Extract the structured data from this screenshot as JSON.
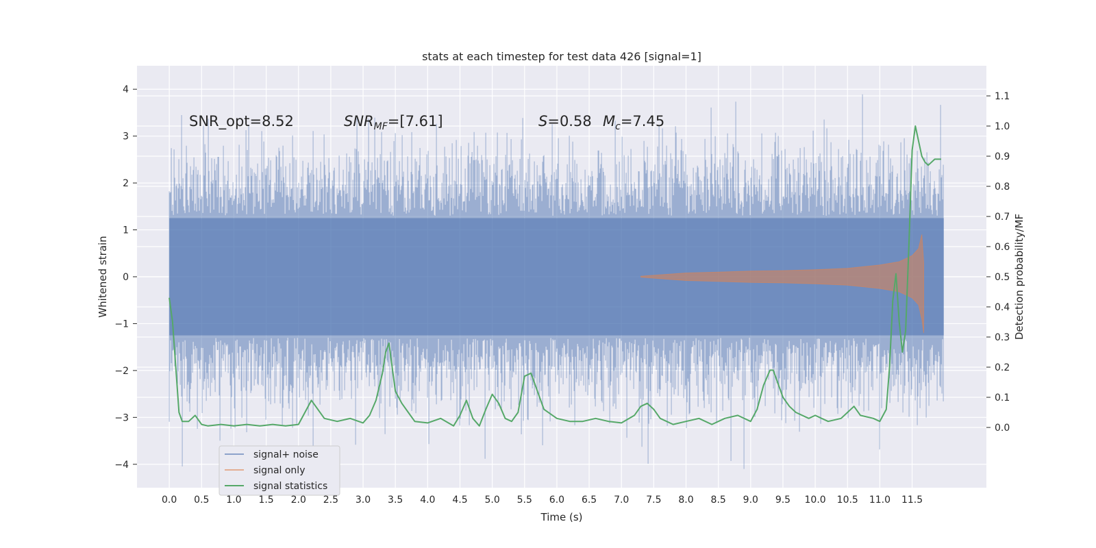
{
  "chart_data": {
    "type": "line",
    "title": "stats at each timestep for test data 426 [signal=1]",
    "xlabel": "Time (s)",
    "ylabel": "Whitened strain",
    "y2label": "Detection probability/MF",
    "xlim": [
      -0.5,
      12.65
    ],
    "ylim": [
      -4.5,
      4.5
    ],
    "y2lim": [
      -0.2,
      1.2
    ],
    "x_ticks": [
      "0.0",
      "0.5",
      "1.0",
      "1.5",
      "2.0",
      "2.5",
      "3.0",
      "3.5",
      "4.0",
      "4.5",
      "5.0",
      "5.5",
      "6.0",
      "6.5",
      "7.0",
      "7.5",
      "8.0",
      "8.5",
      "9.0",
      "9.5",
      "10.0",
      "10.5",
      "11.0",
      "11.5"
    ],
    "y_ticks": [
      "4",
      "3",
      "2",
      "1",
      "0",
      "−1",
      "−2",
      "−3",
      "−4"
    ],
    "y2_ticks": [
      "1.1",
      "1.0",
      "0.9",
      "0.8",
      "0.7",
      "0.6",
      "0.5",
      "0.4",
      "0.3",
      "0.2",
      "0.1",
      "0.0"
    ],
    "grid": true,
    "legend_position": "lower-left",
    "annotations": {
      "snr_opt": "SNR_opt=8.52",
      "snr_mf_label": "SNR",
      "snr_mf_sub": "MF",
      "snr_mf_value": "=[7.61]",
      "s_label": "S",
      "s_value": "=0.58",
      "mc_label": "M",
      "mc_sub": "c",
      "mc_value": "=7.45"
    },
    "series": [
      {
        "name": "signal+ noise",
        "color": "#4c72b0",
        "opacity": 0.5,
        "description_values": "whitened noisy strain, amplitude roughly between -4.1 and 4.1 over t = 0 to 12",
        "x_range": [
          0.0,
          11.99
        ],
        "envelope_abs_max": 4.1
      },
      {
        "name": "signal only",
        "color": "#dd8452",
        "opacity": 0.5,
        "x": [
          7.3,
          8.0,
          8.5,
          9.0,
          9.5,
          10.0,
          10.5,
          11.0,
          11.3,
          11.5,
          11.6,
          11.65,
          11.68
        ],
        "amplitude": [
          0.01,
          0.08,
          0.1,
          0.12,
          0.13,
          0.15,
          0.18,
          0.25,
          0.32,
          0.45,
          0.6,
          0.9,
          0.3
        ]
      },
      {
        "name": "signal statistics",
        "color": "#55a868",
        "x": [
          0.0,
          0.05,
          0.1,
          0.15,
          0.2,
          0.3,
          0.4,
          0.5,
          0.6,
          0.8,
          1.0,
          1.2,
          1.4,
          1.6,
          1.8,
          2.0,
          2.1,
          2.2,
          2.3,
          2.4,
          2.6,
          2.8,
          3.0,
          3.1,
          3.2,
          3.3,
          3.35,
          3.4,
          3.45,
          3.5,
          3.6,
          3.7,
          3.8,
          4.0,
          4.2,
          4.4,
          4.5,
          4.6,
          4.65,
          4.7,
          4.8,
          4.9,
          5.0,
          5.1,
          5.2,
          5.3,
          5.4,
          5.5,
          5.6,
          5.7,
          5.8,
          6.0,
          6.2,
          6.4,
          6.6,
          6.8,
          7.0,
          7.2,
          7.3,
          7.4,
          7.5,
          7.6,
          7.7,
          7.8,
          8.0,
          8.2,
          8.4,
          8.6,
          8.8,
          9.0,
          9.1,
          9.2,
          9.3,
          9.35,
          9.4,
          9.5,
          9.6,
          9.7,
          9.9,
          10.0,
          10.1,
          10.2,
          10.4,
          10.5,
          10.6,
          10.7,
          10.9,
          11.0,
          11.05,
          11.1,
          11.15,
          11.2,
          11.25,
          11.3,
          11.35,
          11.4,
          11.45,
          11.5,
          11.55,
          11.6,
          11.65,
          11.7,
          11.75,
          11.8,
          11.85,
          11.9,
          11.95
        ],
        "values": [
          0.43,
          0.35,
          0.2,
          0.05,
          0.02,
          0.02,
          0.04,
          0.01,
          0.005,
          0.01,
          0.005,
          0.01,
          0.005,
          0.01,
          0.005,
          0.01,
          0.05,
          0.09,
          0.06,
          0.03,
          0.02,
          0.03,
          0.015,
          0.04,
          0.09,
          0.18,
          0.25,
          0.28,
          0.2,
          0.12,
          0.08,
          0.05,
          0.02,
          0.015,
          0.03,
          0.005,
          0.04,
          0.09,
          0.06,
          0.03,
          0.005,
          0.06,
          0.11,
          0.08,
          0.03,
          0.02,
          0.05,
          0.17,
          0.18,
          0.12,
          0.06,
          0.03,
          0.02,
          0.02,
          0.03,
          0.02,
          0.015,
          0.04,
          0.07,
          0.08,
          0.06,
          0.03,
          0.02,
          0.01,
          0.02,
          0.03,
          0.01,
          0.03,
          0.04,
          0.02,
          0.06,
          0.14,
          0.19,
          0.19,
          0.16,
          0.1,
          0.07,
          0.05,
          0.03,
          0.04,
          0.03,
          0.02,
          0.03,
          0.05,
          0.07,
          0.04,
          0.03,
          0.02,
          0.04,
          0.06,
          0.2,
          0.42,
          0.51,
          0.35,
          0.25,
          0.32,
          0.6,
          0.92,
          1.0,
          0.95,
          0.9,
          0.88,
          0.87,
          0.88,
          0.89,
          0.89,
          0.89
        ]
      }
    ]
  }
}
